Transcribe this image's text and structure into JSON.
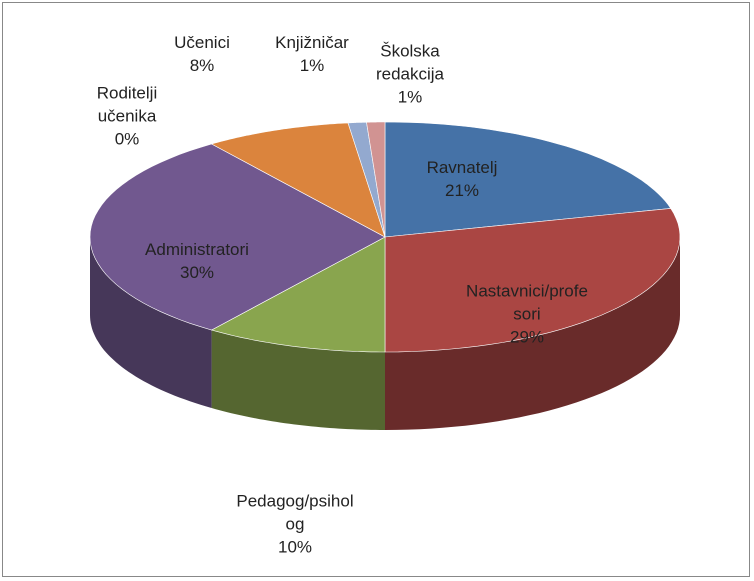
{
  "chart_data": {
    "type": "pie",
    "categories": [
      "Ravnatelj",
      "Nastavnici/profesori",
      "Pedagog/psiholog",
      "Administratori",
      "Roditelji učenika",
      "Učenici",
      "Knjižničar",
      "Školska redakcija"
    ],
    "values": [
      21,
      29,
      10,
      30,
      0,
      8,
      1,
      1
    ],
    "value_labels": [
      "21%",
      "29%",
      "10%",
      "30%",
      "0%",
      "8%",
      "1%",
      "1%"
    ],
    "colors": [
      "#4572a7",
      "#aa4643",
      "#89a54e",
      "#71588f",
      "#4198af",
      "#db843d",
      "#93a9cf",
      "#d19392"
    ],
    "three_d": true
  }
}
